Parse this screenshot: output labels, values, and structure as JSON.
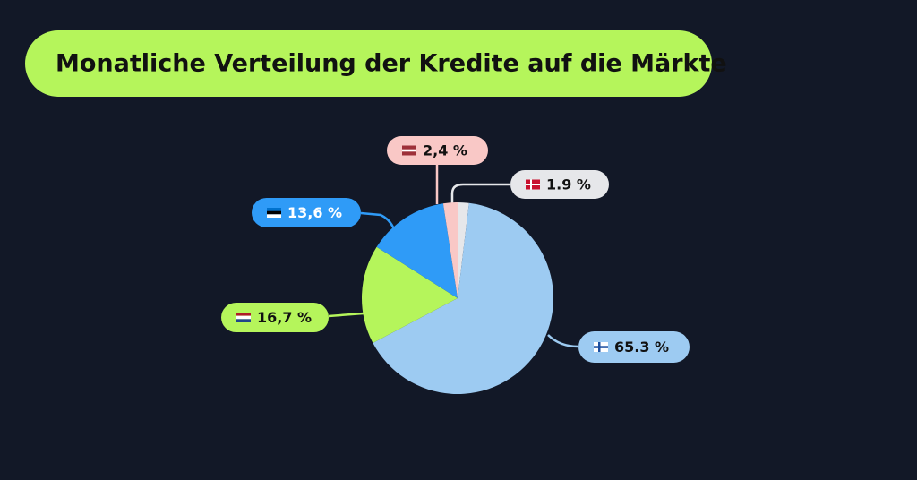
{
  "chart_data": {
    "type": "pie",
    "title": "Monatliche Verteilung der Kredite auf die Märkte",
    "values": [
      1.9,
      65.3,
      16.7,
      13.6,
      2.4
    ],
    "value_labels": [
      "1.9 %",
      "65.3 %",
      "16,7 %",
      "13,6 %",
      "2,4 %"
    ],
    "colors": [
      "#e6e7ea",
      "#9dcbf2",
      "#b5f55b",
      "#2f9bf7",
      "#f9c8c6"
    ]
  }
}
